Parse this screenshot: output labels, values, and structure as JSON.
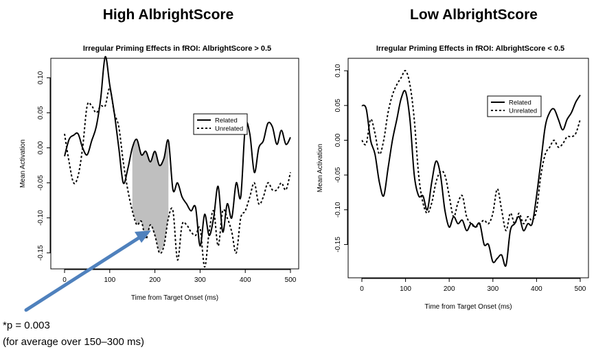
{
  "headings": {
    "left": "High AlbrightScore",
    "right": "Low AlbrightScore"
  },
  "annotation": {
    "line1": "*p = 0.003",
    "line2": "(for average over 150–300 ms)",
    "arrow_color": "#4f81bd"
  },
  "chart_data": [
    {
      "type": "line",
      "title": "Irregular Priming Effects in fROI: AlbrightScore > 0.5",
      "xlabel": "Time from Target Onset (ms)",
      "ylabel": "Mean Activation",
      "xlim": [
        0,
        500
      ],
      "ylim": [
        -0.165,
        0.12
      ],
      "xticks": [
        0,
        100,
        200,
        300,
        400,
        500
      ],
      "yticks": [
        -0.15,
        -0.1,
        -0.05,
        0.0,
        0.05,
        0.1
      ],
      "ytick_labels": [
        "-0.15",
        "-0.10",
        "-0.05",
        "0.00",
        "0.05",
        "0.10"
      ],
      "legend": {
        "position": "right",
        "entries": [
          "Related",
          "Unrelated"
        ]
      },
      "shaded_region": {
        "x": [
          150,
          230
        ],
        "between": [
          "Related",
          "Unrelated"
        ],
        "color": "#bfbfbf"
      },
      "x": [
        0,
        10,
        20,
        30,
        40,
        50,
        60,
        70,
        80,
        90,
        100,
        110,
        120,
        130,
        140,
        150,
        160,
        170,
        180,
        190,
        200,
        210,
        220,
        230,
        240,
        250,
        260,
        270,
        280,
        290,
        300,
        310,
        320,
        330,
        340,
        350,
        360,
        370,
        380,
        390,
        400,
        410,
        420,
        430,
        440,
        450,
        460,
        470,
        480,
        490,
        500
      ],
      "series": [
        {
          "name": "Related",
          "style": "solid",
          "values": [
            -0.012,
            0.012,
            0.018,
            0.02,
            0.0,
            -0.01,
            0.01,
            0.03,
            0.07,
            0.13,
            0.09,
            0.05,
            0.0,
            -0.05,
            -0.03,
            0.0,
            0.012,
            -0.01,
            -0.005,
            -0.02,
            -0.005,
            -0.025,
            -0.015,
            0.01,
            -0.06,
            -0.05,
            -0.07,
            -0.08,
            -0.09,
            -0.085,
            -0.14,
            -0.095,
            -0.125,
            -0.1,
            -0.055,
            -0.12,
            -0.08,
            -0.1,
            -0.05,
            -0.07,
            0.03,
            0.02,
            -0.035,
            0.0,
            0.01,
            0.035,
            0.03,
            0.005,
            0.025,
            0.005,
            0.015
          ]
        },
        {
          "name": "Unrelated",
          "style": "dashed",
          "values": [
            0.02,
            -0.02,
            -0.05,
            -0.04,
            0.0,
            0.06,
            0.06,
            0.05,
            0.06,
            0.06,
            0.085,
            0.05,
            0.03,
            -0.02,
            -0.06,
            -0.09,
            -0.11,
            -0.105,
            -0.13,
            -0.11,
            -0.125,
            -0.15,
            -0.14,
            -0.1,
            -0.09,
            -0.16,
            -0.11,
            -0.11,
            -0.12,
            -0.125,
            -0.115,
            -0.17,
            -0.12,
            -0.09,
            -0.14,
            -0.09,
            -0.1,
            -0.12,
            -0.15,
            -0.1,
            -0.09,
            -0.07,
            -0.05,
            -0.08,
            -0.07,
            -0.05,
            -0.06,
            -0.06,
            -0.05,
            -0.06,
            -0.035
          ]
        }
      ]
    },
    {
      "type": "line",
      "title": "Irregular Priming Effects in fROI: AlbrightScore < 0.5",
      "xlabel": "Time from Target Onset (ms)",
      "ylabel": "Mean Activation",
      "xlim": [
        0,
        500
      ],
      "ylim": [
        -0.19,
        0.11
      ],
      "xticks": [
        0,
        100,
        200,
        300,
        400,
        500
      ],
      "yticks": [
        -0.15,
        -0.1,
        -0.05,
        0.0,
        0.05,
        0.1
      ],
      "ytick_labels": [
        "-0.15",
        "-0.10",
        "-0.05",
        "0.00",
        "0.05",
        "0.10"
      ],
      "legend": {
        "position": "top-right",
        "entries": [
          "Related",
          "Unrelated"
        ]
      },
      "x": [
        0,
        10,
        20,
        30,
        40,
        50,
        60,
        70,
        80,
        90,
        100,
        110,
        120,
        130,
        140,
        150,
        160,
        170,
        180,
        190,
        200,
        210,
        220,
        230,
        240,
        250,
        260,
        270,
        280,
        290,
        300,
        310,
        320,
        330,
        340,
        350,
        360,
        370,
        380,
        390,
        400,
        410,
        420,
        430,
        440,
        450,
        460,
        470,
        480,
        490,
        500
      ],
      "series": [
        {
          "name": "Related",
          "style": "solid",
          "values": [
            0.05,
            0.045,
            0.0,
            -0.02,
            -0.06,
            -0.08,
            -0.04,
            0.0,
            0.03,
            0.06,
            0.07,
            0.03,
            -0.05,
            -0.08,
            -0.08,
            -0.1,
            -0.06,
            -0.03,
            -0.05,
            -0.1,
            -0.125,
            -0.11,
            -0.12,
            -0.115,
            -0.13,
            -0.12,
            -0.125,
            -0.12,
            -0.15,
            -0.15,
            -0.175,
            -0.17,
            -0.165,
            -0.18,
            -0.13,
            -0.12,
            -0.11,
            -0.13,
            -0.12,
            -0.12,
            -0.08,
            -0.03,
            0.02,
            0.04,
            0.045,
            0.03,
            0.015,
            0.03,
            0.04,
            0.055,
            0.065
          ]
        },
        {
          "name": "Unrelated",
          "style": "dashed",
          "values": [
            0.0,
            -0.005,
            0.03,
            0.01,
            -0.02,
            0.0,
            0.04,
            0.065,
            0.08,
            0.09,
            0.1,
            0.08,
            0.03,
            -0.05,
            -0.09,
            -0.105,
            -0.09,
            -0.06,
            -0.045,
            -0.05,
            -0.08,
            -0.11,
            -0.09,
            -0.08,
            -0.11,
            -0.12,
            -0.125,
            -0.12,
            -0.115,
            -0.12,
            -0.105,
            -0.07,
            -0.1,
            -0.13,
            -0.105,
            -0.12,
            -0.105,
            -0.12,
            -0.11,
            -0.115,
            -0.1,
            -0.05,
            -0.02,
            -0.01,
            0.0,
            -0.01,
            -0.005,
            0.005,
            0.005,
            0.01,
            0.03
          ]
        }
      ]
    }
  ]
}
